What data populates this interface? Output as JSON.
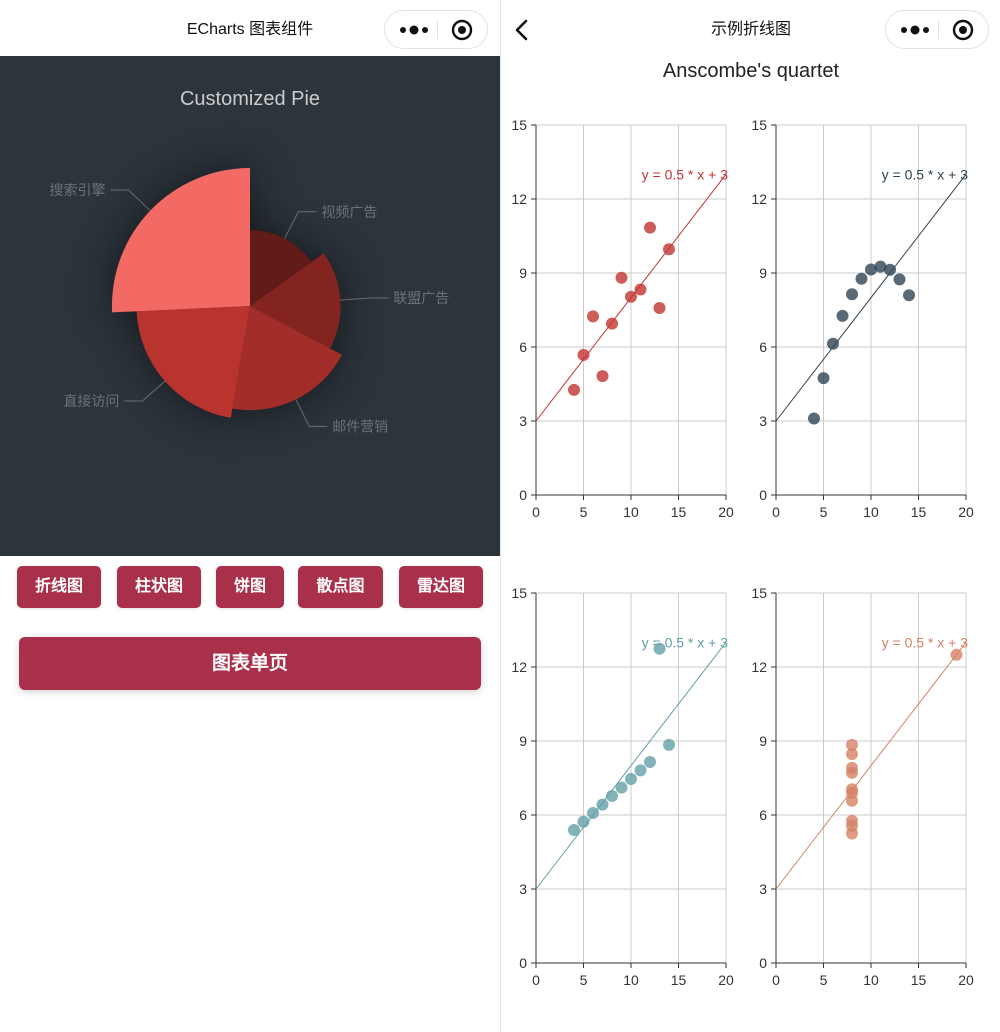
{
  "left": {
    "nav_title": "ECharts 图表组件",
    "chart_title": "Customized Pie",
    "buttons": [
      "折线图",
      "柱状图",
      "饼图",
      "散点图",
      "雷达图"
    ],
    "wide_button": "图表单页",
    "colors": {
      "background": "#2c343c",
      "button": "#a9304a",
      "pie_base": "#c23531",
      "label": "rgba(255,255,255,0.35)"
    }
  },
  "right": {
    "nav_title": "示例折线图",
    "chart_title": "Anscombe's quartet"
  },
  "capsule_icons": [
    "more-dots-icon",
    "target-icon"
  ],
  "chart_data": [
    {
      "type": "pie",
      "title": "Customized Pie",
      "roseType": "radius",
      "slices": [
        {
          "name": "视频广告",
          "value": 235
        },
        {
          "name": "联盟广告",
          "value": 274
        },
        {
          "name": "邮件营销",
          "value": 310
        },
        {
          "name": "直接访问",
          "value": 335
        },
        {
          "name": "搜索引擎",
          "value": 400
        }
      ],
      "label_color": "rgba(255,255,255,0.3)"
    },
    {
      "type": "scatter",
      "grid": "top-left",
      "color": "#c23531",
      "points": [
        [
          10.0,
          8.04
        ],
        [
          8.0,
          6.95
        ],
        [
          13.0,
          7.58
        ],
        [
          9.0,
          8.81
        ],
        [
          11.0,
          8.33
        ],
        [
          14.0,
          9.96
        ],
        [
          6.0,
          7.24
        ],
        [
          4.0,
          4.26
        ],
        [
          12.0,
          10.84
        ],
        [
          7.0,
          4.82
        ],
        [
          5.0,
          5.68
        ]
      ],
      "line_label": "y = 0.5 * x + 3",
      "xlim": [
        0,
        20
      ],
      "ylim": [
        0,
        15
      ],
      "xticks": [
        0,
        5,
        10,
        15,
        20
      ],
      "yticks": [
        0,
        3,
        6,
        9,
        12,
        15
      ],
      "grid_lines": true
    },
    {
      "type": "scatter",
      "grid": "top-right",
      "color": "#2f4554",
      "points": [
        [
          10.0,
          9.14
        ],
        [
          8.0,
          8.14
        ],
        [
          13.0,
          8.74
        ],
        [
          9.0,
          8.77
        ],
        [
          11.0,
          9.26
        ],
        [
          14.0,
          8.1
        ],
        [
          6.0,
          6.13
        ],
        [
          4.0,
          3.1
        ],
        [
          12.0,
          9.13
        ],
        [
          7.0,
          7.26
        ],
        [
          5.0,
          4.74
        ]
      ],
      "line_label": "y = 0.5 * x + 3",
      "xlim": [
        0,
        20
      ],
      "ylim": [
        0,
        15
      ],
      "xticks": [
        0,
        5,
        10,
        15,
        20
      ],
      "yticks": [
        0,
        3,
        6,
        9,
        12,
        15
      ],
      "grid_lines": true
    },
    {
      "type": "scatter",
      "grid": "bottom-left",
      "color": "#61a0a8",
      "points": [
        [
          10.0,
          7.46
        ],
        [
          8.0,
          6.77
        ],
        [
          13.0,
          12.74
        ],
        [
          9.0,
          7.11
        ],
        [
          11.0,
          7.81
        ],
        [
          14.0,
          8.84
        ],
        [
          6.0,
          6.08
        ],
        [
          4.0,
          5.39
        ],
        [
          12.0,
          8.15
        ],
        [
          7.0,
          6.42
        ],
        [
          5.0,
          5.73
        ]
      ],
      "line_label": "y = 0.5 * x + 3",
      "xlim": [
        0,
        20
      ],
      "ylim": [
        0,
        15
      ],
      "xticks": [
        0,
        5,
        10,
        15,
        20
      ],
      "yticks": [
        0,
        3,
        6,
        9,
        12,
        15
      ],
      "grid_lines": true
    },
    {
      "type": "scatter",
      "grid": "bottom-right",
      "color": "#d48265",
      "points": [
        [
          8.0,
          6.58
        ],
        [
          8.0,
          5.76
        ],
        [
          8.0,
          7.71
        ],
        [
          8.0,
          8.84
        ],
        [
          8.0,
          8.47
        ],
        [
          8.0,
          7.04
        ],
        [
          8.0,
          5.25
        ],
        [
          19.0,
          12.5
        ],
        [
          8.0,
          5.56
        ],
        [
          8.0,
          7.91
        ],
        [
          8.0,
          6.89
        ]
      ],
      "line_label": "y = 0.5 * x + 3",
      "xlim": [
        0,
        20
      ],
      "ylim": [
        0,
        15
      ],
      "xticks": [
        0,
        5,
        10,
        15,
        20
      ],
      "yticks": [
        0,
        3,
        6,
        9,
        12,
        15
      ],
      "grid_lines": true
    }
  ]
}
